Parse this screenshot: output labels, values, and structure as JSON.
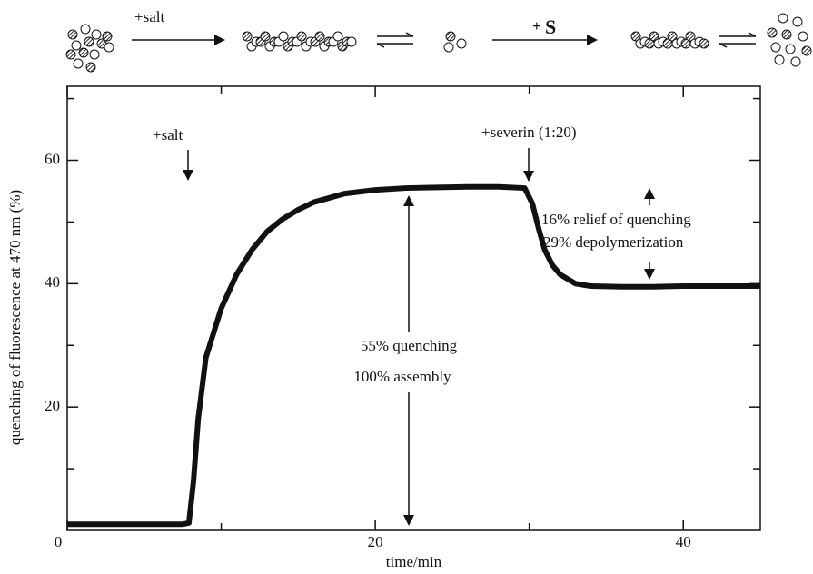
{
  "chart_data": {
    "type": "line",
    "x_label": "time/min",
    "y_label": "quenching of fluorescence at 470 nm (%)",
    "x": [
      0,
      2,
      4,
      6,
      7.5,
      7.9,
      8.2,
      8.5,
      9,
      10,
      11,
      12,
      13,
      14,
      15,
      16,
      18,
      20,
      22,
      24,
      26,
      28,
      29.7,
      30.2,
      30.6,
      31,
      31.5,
      32,
      33,
      34,
      36,
      38,
      40,
      42,
      45
    ],
    "values": [
      1,
      1,
      1,
      1,
      1,
      1.2,
      8,
      18,
      28,
      36,
      41.5,
      45.5,
      48.5,
      50.5,
      52,
      53.2,
      54.6,
      55.2,
      55.5,
      55.6,
      55.7,
      55.7,
      55.5,
      53,
      49,
      45.5,
      43,
      41.5,
      40,
      39.6,
      39.5,
      39.5,
      39.6,
      39.6,
      39.6
    ],
    "color": "#111111",
    "xlim": [
      0,
      45
    ],
    "ylim": [
      0,
      72
    ],
    "xticks": [
      0,
      20,
      40
    ],
    "yticks": [
      20,
      40,
      60
    ],
    "xminor": [
      10,
      30
    ],
    "yminor": [
      10,
      30,
      50,
      70
    ],
    "annotations": {
      "salt": "+salt",
      "severin": "+severin (1:20)",
      "relief": "16% relief of quenching",
      "depoly": "29% depolymerization",
      "quench": "55% quenching",
      "assembly": "100% assembly"
    }
  },
  "schematic": {
    "step1": "+salt",
    "step2_plus": "+",
    "step2_s": "S"
  }
}
